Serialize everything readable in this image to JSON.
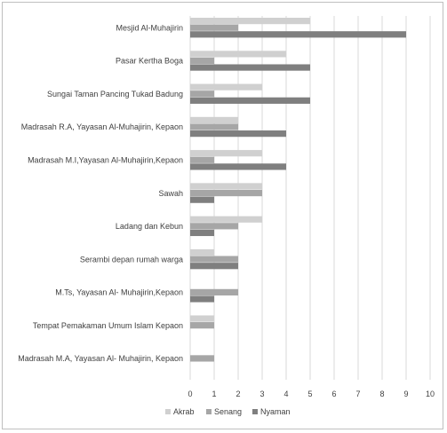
{
  "chart_data": {
    "type": "bar",
    "orientation": "horizontal",
    "categories": [
      "Mesjid Al-Muhajirin",
      "Pasar Kertha Boga",
      "Sungai Taman Pancing Tukad Badung",
      "Madrasah R.A, Yayasan Al-Muhajirin, Kepaon",
      "Madrasah M.I,Yayasan Al-Muhajirin,Kepaon",
      "Sawah",
      "Ladang dan Kebun",
      "Serambi depan rumah warga",
      "M.Ts, Yayasan Al- Muhajirin,Kepaon",
      "Tempat Pemakaman Umum Islam Kepaon",
      "Madrasah M.A, Yayasan Al- Muhajirin, Kepaon"
    ],
    "series": [
      {
        "name": "Akrab",
        "color": "#d0d0d0",
        "values": [
          5,
          4,
          3,
          2,
          3,
          3,
          3,
          1,
          0,
          1,
          0
        ]
      },
      {
        "name": "Senang",
        "color": "#a6a6a6",
        "values": [
          2,
          1,
          1,
          2,
          1,
          3,
          2,
          2,
          2,
          1,
          1
        ]
      },
      {
        "name": "Nyaman",
        "color": "#7f7f7f",
        "values": [
          9,
          5,
          5,
          4,
          4,
          1,
          1,
          2,
          1,
          0,
          0
        ]
      }
    ],
    "xlim": [
      0,
      10
    ],
    "xticks": [
      "0",
      "1",
      "2",
      "3",
      "4",
      "5",
      "6",
      "7",
      "8",
      "9",
      "10"
    ],
    "grid": true,
    "legend": "bottom",
    "title": "",
    "xlabel": "",
    "ylabel": ""
  }
}
